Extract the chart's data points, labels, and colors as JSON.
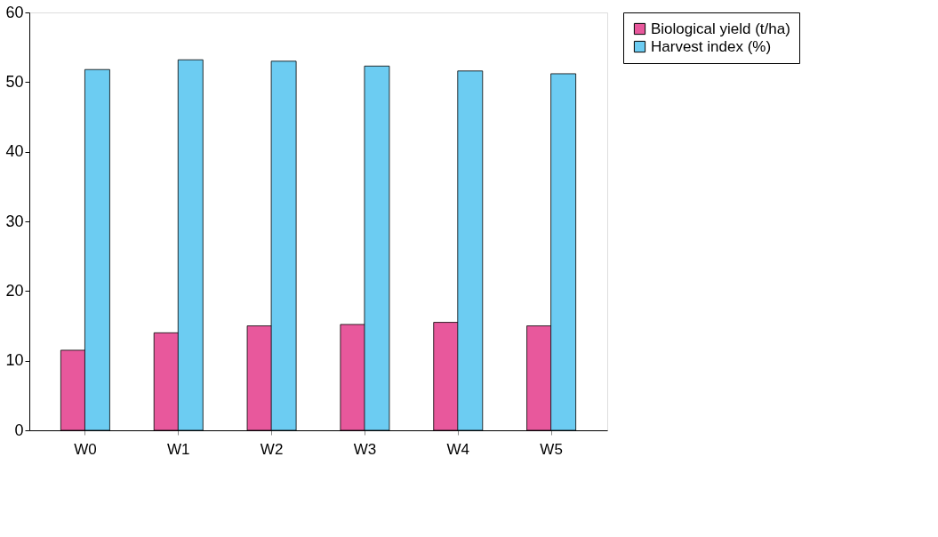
{
  "chart_data": {
    "type": "bar",
    "categories": [
      "W0",
      "W1",
      "W2",
      "W3",
      "W4",
      "W5"
    ],
    "series": [
      {
        "name": "Biological yield (t/ha)",
        "color": "#e8589c",
        "values": [
          11.5,
          14,
          15,
          15.2,
          15.5,
          15
        ]
      },
      {
        "name": "Harvest index (%)",
        "color": "#6cccf2",
        "values": [
          51.8,
          53.2,
          53,
          52.3,
          51.6,
          51.2
        ]
      }
    ],
    "ylim": [
      0,
      60
    ],
    "yticks": [
      0,
      10,
      20,
      30,
      40,
      50,
      60
    ],
    "grid": false,
    "legend": "right"
  }
}
